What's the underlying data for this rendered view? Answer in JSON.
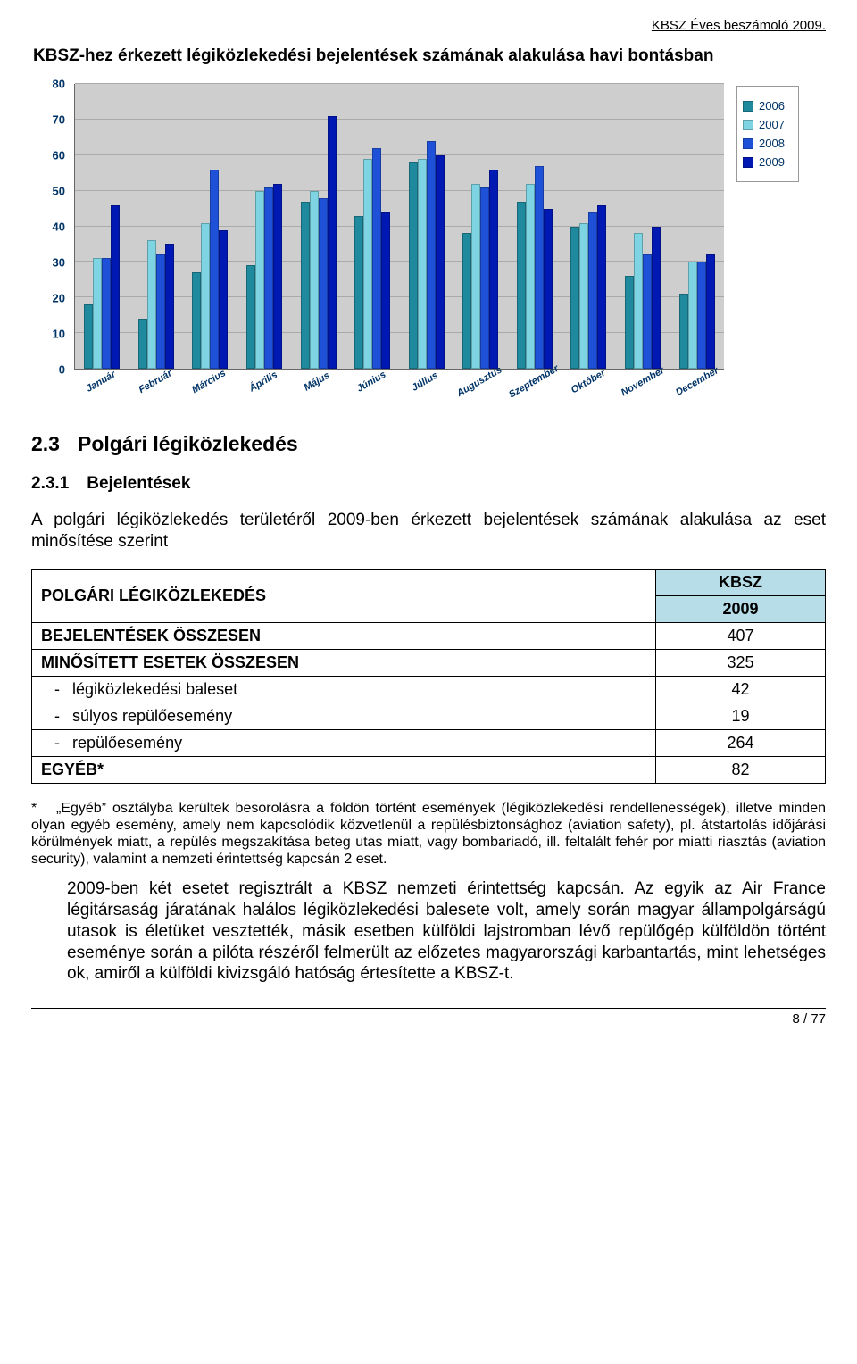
{
  "header": {
    "right_text": "KBSZ Éves beszámoló 2009."
  },
  "section_title": "KBSZ-hez érkezett légiközlekedési bejelentések számának alakulása havi bontásban",
  "chart": {
    "type": "bar",
    "background_color": "#cececf",
    "grid_color": "#aaaaaa",
    "axis_font_color": "#003366",
    "axis_fontsize": 13,
    "ylim": [
      0,
      80
    ],
    "ytick_step": 10,
    "series": [
      {
        "name": "2006",
        "color": "#1f8a9e"
      },
      {
        "name": "2007",
        "color": "#7fd4e3"
      },
      {
        "name": "2008",
        "color": "#1f50d8"
      },
      {
        "name": "2009",
        "color": "#0019b3"
      }
    ],
    "categories": [
      "Január",
      "Február",
      "Március",
      "Április",
      "Május",
      "Június",
      "Július",
      "Augusztus",
      "Szeptember",
      "Október",
      "November",
      "December"
    ],
    "data": {
      "2006": [
        18,
        14,
        27,
        29,
        47,
        43,
        58,
        38,
        47,
        40,
        26,
        21
      ],
      "2007": [
        31,
        36,
        41,
        50,
        50,
        59,
        59,
        52,
        52,
        41,
        38,
        30
      ],
      "2008": [
        31,
        32,
        56,
        51,
        48,
        62,
        64,
        51,
        57,
        44,
        32,
        30
      ],
      "2009": [
        46,
        35,
        39,
        52,
        71,
        44,
        60,
        56,
        45,
        46,
        40,
        32
      ]
    }
  },
  "h2": {
    "num": "2.3",
    "text": "Polgári légiközlekedés"
  },
  "h3": {
    "num": "2.3.1",
    "text": "Bejelentések"
  },
  "intro": "A polgári légiközlekedés területéről 2009-ben érkezett bejelentések számának alakulása az eset minősítése szerint",
  "table": {
    "header_left": "POLGÁRI LÉGIKÖZLEKEDÉS",
    "header_top": "KBSZ",
    "header_year": "2009",
    "rows": [
      {
        "label": "BEJELENTÉSEK ÖSSZESEN",
        "value": "407",
        "bold": true
      },
      {
        "label": "MINŐSÍTETT ESETEK ÖSSZESEN",
        "value": "325",
        "bold": true
      },
      {
        "label": "légiközlekedési baleset",
        "value": "42",
        "sub": true
      },
      {
        "label": "súlyos repülőesemény",
        "value": "19",
        "sub": true
      },
      {
        "label": "repülőesemény",
        "value": "264",
        "sub": true
      },
      {
        "label": "EGYÉB*",
        "value": "82",
        "bold": true
      }
    ],
    "header_bg": "#b7dee8"
  },
  "footnote": "„Egyéb” osztályba kerültek besorolásra a földön történt események (légiközlekedési rendellenességek), illetve minden olyan egyéb esemény, amely nem kapcsolódik közvetlenül a repülésbiztonsághoz (aviation safety), pl. átstartolás időjárási körülmények miatt, a repülés megszakítása beteg utas miatt, vagy bombariadó, ill. feltalált fehér por miatti riasztás (aviation security), valamint a nemzeti érintettség kapcsán 2 eset.",
  "footnote_marker": "*",
  "paragraph": "2009-ben két esetet regisztrált a KBSZ nemzeti érintettség kapcsán. Az egyik az Air France légitársaság járatának halálos légiközlekedési balesete volt, amely során magyar állampolgárságú utasok is életüket vesztették, másik esetben külföldi lajstromban lévő repülőgép külföldön történt eseménye során a pilóta részéről felmerült az előzetes magyarországi karbantartás, mint lehetséges ok, amiről a külföldi kivizsgáló hatóság értesítette a KBSZ-t.",
  "footer": {
    "page": "8 / 77"
  }
}
